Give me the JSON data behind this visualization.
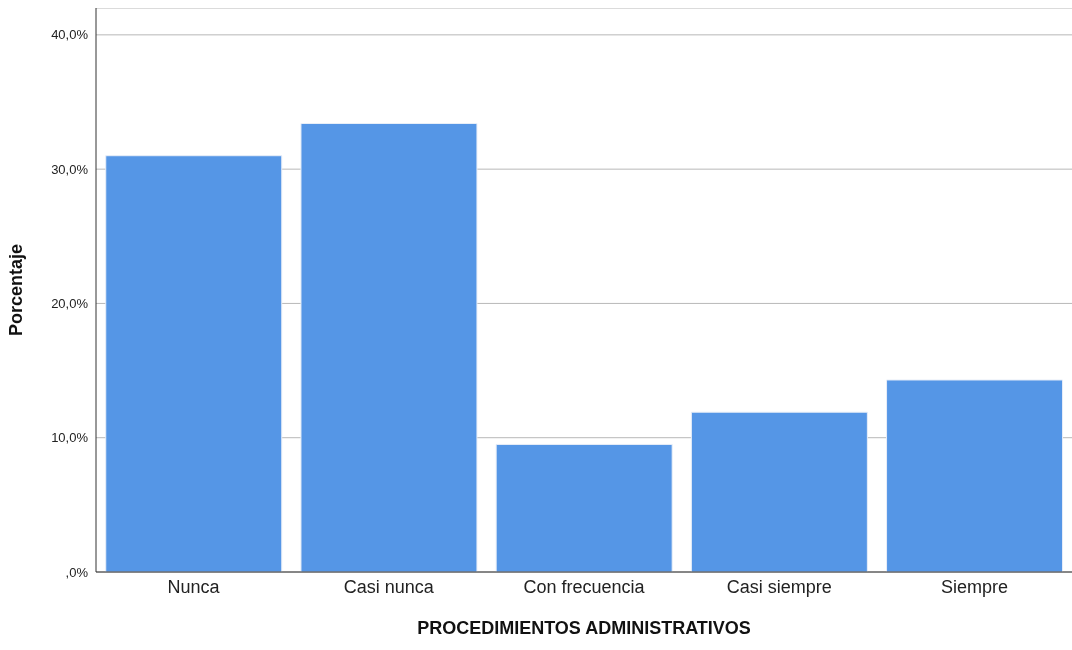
{
  "chart_data": {
    "type": "bar",
    "xlabel": "PROCEDIMIENTOS ADMINISTRATIVOS",
    "ylabel": "Porcentaje",
    "categories": [
      "Nunca",
      "Casi nunca",
      "Con frecuencia",
      "Casi siempre",
      "Siempre"
    ],
    "values": [
      31.0,
      33.4,
      9.5,
      11.9,
      14.3
    ],
    "color": "#5596e6",
    "ylim": [
      0,
      42
    ],
    "yticks": [
      {
        "value": 0,
        "label": ",0%"
      },
      {
        "value": 10,
        "label": "10,0%"
      },
      {
        "value": 20,
        "label": "20,0%"
      },
      {
        "value": 30,
        "label": "30,0%"
      },
      {
        "value": 40,
        "label": "40,0%"
      }
    ],
    "grid": "y"
  }
}
